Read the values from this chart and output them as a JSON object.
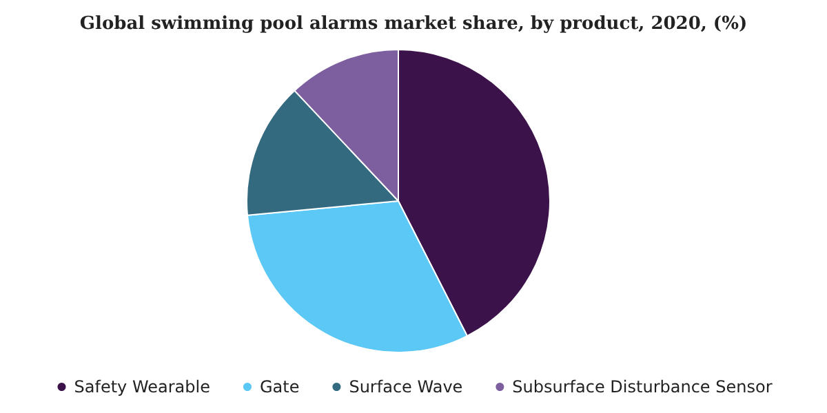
{
  "chart_data": {
    "type": "pie",
    "title": "Global swimming pool alarms market share, by product, 2020, (%)",
    "categories": [
      "Safety Wearable",
      "Gate",
      "Surface Wave",
      "Subsurface Disturbance Sensor"
    ],
    "values": [
      42.5,
      31,
      14.5,
      12
    ],
    "colors": [
      "#3b1249",
      "#5bc8f5",
      "#336a80",
      "#7d5fa0"
    ],
    "legend": "bottom"
  }
}
